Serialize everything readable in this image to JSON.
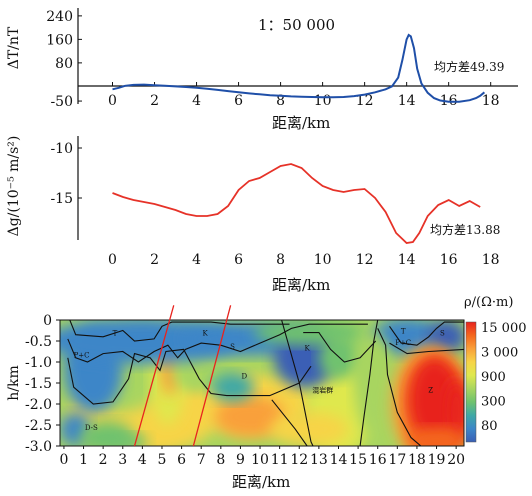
{
  "scale_label": "1：50 000",
  "chart_data": [
    {
      "type": "line",
      "ylabel": "ΔT/nT",
      "xlabel": "距离/km",
      "x_ticks": [
        0,
        2,
        4,
        6,
        8,
        10,
        12,
        14,
        16,
        18
      ],
      "y_ticks": [
        240,
        160,
        80,
        -50
      ],
      "ylim": [
        -60,
        260
      ],
      "xlim": [
        -0.5,
        19.3
      ],
      "annotation": "均方差49.39",
      "series": [
        {
          "color": "#1f4fa8",
          "x": [
            0,
            0.3,
            0.6,
            1,
            1.5,
            2,
            2.5,
            3,
            3.5,
            4,
            4.5,
            5,
            5.5,
            6,
            6.5,
            7,
            7.5,
            8,
            8.5,
            9,
            9.5,
            10,
            10.5,
            11,
            11.5,
            12,
            12.5,
            13,
            13.3,
            13.6,
            13.8,
            14,
            14.1,
            14.2,
            14.35,
            14.5,
            14.7,
            15,
            15.3,
            15.6,
            16,
            16.5,
            17,
            17.3,
            17.5,
            17.7
          ],
          "y": [
            -10,
            -5,
            2,
            5,
            6,
            4,
            2,
            0,
            -2,
            -5,
            -8,
            -12,
            -16,
            -20,
            -24,
            -27,
            -30,
            -32,
            -34,
            -35,
            -36,
            -37,
            -37,
            -36,
            -33,
            -28,
            -20,
            -10,
            0,
            30,
            90,
            160,
            175,
            170,
            130,
            60,
            10,
            -22,
            -40,
            -48,
            -52,
            -52,
            -47,
            -40,
            -32,
            -20
          ]
        }
      ]
    },
    {
      "type": "line",
      "ylabel": "Δg/(10⁻⁵ m/s²)",
      "xlabel": "距离/km",
      "x_ticks": [
        0,
        2,
        4,
        6,
        8,
        10,
        12,
        14,
        16,
        18
      ],
      "y_ticks": [
        -10,
        -15
      ],
      "ylim": [
        -20,
        -9
      ],
      "xlim": [
        -0.5,
        19.3
      ],
      "annotation": "均方差13.88",
      "series": [
        {
          "color": "#e63228",
          "x": [
            0,
            0.5,
            1,
            1.5,
            2,
            2.5,
            3,
            3.5,
            4,
            4.5,
            5,
            5.5,
            6,
            6.5,
            7,
            7.5,
            8,
            8.5,
            9,
            9.5,
            10,
            10.5,
            11,
            11.5,
            12,
            12.5,
            13,
            13.5,
            14,
            14.3,
            14.6,
            15,
            15.5,
            16,
            16.5,
            17,
            17.5
          ],
          "y": [
            -14.5,
            -14.9,
            -15.2,
            -15.4,
            -15.6,
            -15.9,
            -16.2,
            -16.6,
            -16.8,
            -16.8,
            -16.6,
            -15.8,
            -14.2,
            -13.3,
            -13,
            -12.4,
            -11.8,
            -11.6,
            -12,
            -13,
            -13.8,
            -14.2,
            -14.4,
            -14.2,
            -14.1,
            -15,
            -16.4,
            -18.5,
            -19.5,
            -19.4,
            -18.5,
            -16.8,
            -15.7,
            -15.2,
            -15.8,
            -15.3,
            -15.9
          ]
        }
      ]
    },
    {
      "type": "heatmap",
      "ylabel": "h/km",
      "xlabel": "距离/km",
      "x_ticks": [
        0,
        1,
        2,
        3,
        4,
        5,
        6,
        7,
        8,
        9,
        10,
        11,
        12,
        13,
        14,
        15,
        16,
        17,
        18,
        19,
        20
      ],
      "y_ticks": [
        0,
        -0.5,
        -1.0,
        -1.5,
        -2.0,
        -2.5,
        -3.0
      ],
      "xlim": [
        -0.2,
        20.4
      ],
      "ylim": [
        -3.0,
        0
      ],
      "colorbar_title": "ρ/(Ω·m)",
      "colorbar_ticks": [
        "15 000",
        "3 000",
        "900",
        "300",
        "80"
      ],
      "colorbar_colors": [
        "#e8231e",
        "#f4661e",
        "#f9a03a",
        "#f7d447",
        "#dfe84e",
        "#a8d560",
        "#6fc26e",
        "#3fa8a6",
        "#3d86c8",
        "#3a5fb5"
      ],
      "unit_labels": [
        {
          "text": "T",
          "x": 2.6,
          "y": -0.3
        },
        {
          "text": "P+C",
          "x": 0.9,
          "y": -0.82
        },
        {
          "text": "K",
          "x": 7.2,
          "y": -0.3
        },
        {
          "text": "S",
          "x": 8.6,
          "y": -0.62
        },
        {
          "text": "D",
          "x": 9.2,
          "y": -1.32
        },
        {
          "text": "K",
          "x": 12.4,
          "y": -0.65
        },
        {
          "text": "混岩群",
          "x": 13.2,
          "y": -1.65
        },
        {
          "text": "T",
          "x": 17.3,
          "y": -0.25
        },
        {
          "text": "P+C",
          "x": 17.3,
          "y": -0.52
        },
        {
          "text": "S",
          "x": 19.3,
          "y": -0.3
        },
        {
          "text": "Z",
          "x": 18.7,
          "y": -1.65
        },
        {
          "text": "D-S",
          "x": 1.4,
          "y": -2.55
        }
      ]
    }
  ]
}
